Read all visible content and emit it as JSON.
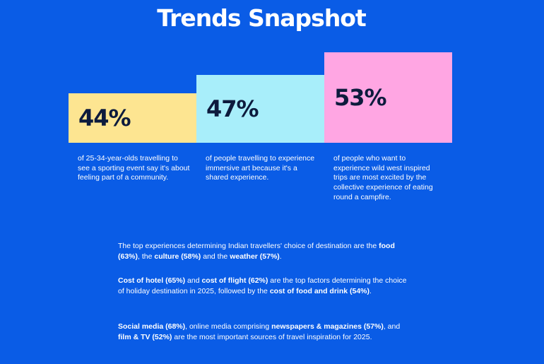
{
  "title": "Trends Snapshot",
  "stats": [
    {
      "value": "44%",
      "text": "of 25-34-year-olds travelling to see a sporting event say it's about feeling part of a community.",
      "color": "#fde591"
    },
    {
      "value": "47%",
      "text": "of people travelling to experience immersive art because it's a shared experience.",
      "color": "#a8eefa"
    },
    {
      "value": "53%",
      "text": "of people who want to experience wild west inspired trips are most excited by the collective experience of eating round a campfire.",
      "color": "#ffa6e3"
    }
  ],
  "info": {
    "p1": {
      "t1": "The top experiences determining Indian travellers' choice of destination are the ",
      "b1": "food (63%)",
      "t2": ", the ",
      "b2": "culture (58%)",
      "t3": " and the ",
      "b3": "weather (57%)",
      "t4": "."
    },
    "p2": {
      "b1": "Cost of hotel (65%)",
      "t1": " and ",
      "b2": "cost of flight (62%)",
      "t2": " are the top factors determining the choice of holiday destination in 2025, followed by the ",
      "b3": "cost of food and drink (54%)",
      "t3": "."
    },
    "p3": {
      "b1": "Social media (68%)",
      "t1": ", online media comprising ",
      "b2": "newspapers & magazines (57%)",
      "t2": ", and ",
      "b3": "film & TV (52%)",
      "t3": " are the most important sources of travel inspiration for 2025."
    }
  },
  "colors": {
    "background": "#0a5ce6",
    "stat_text": "#0d1b3d"
  }
}
